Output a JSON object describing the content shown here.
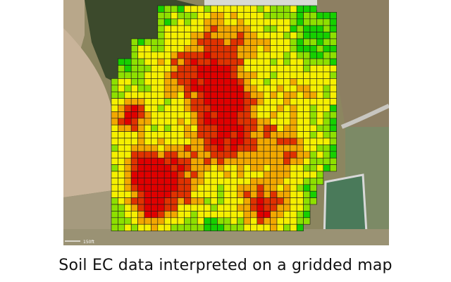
{
  "caption": "Soil EC data interpreted on a gridded map",
  "scale_bar_label": "150ft",
  "colors": {
    "low": "#16d000",
    "low_mid": "#8ee000",
    "mid": "#f5f000",
    "mid_high": "#f2a800",
    "high": "#e03200",
    "very_high": "#e00000",
    "grid_line": "#1a1a1a"
  }
}
